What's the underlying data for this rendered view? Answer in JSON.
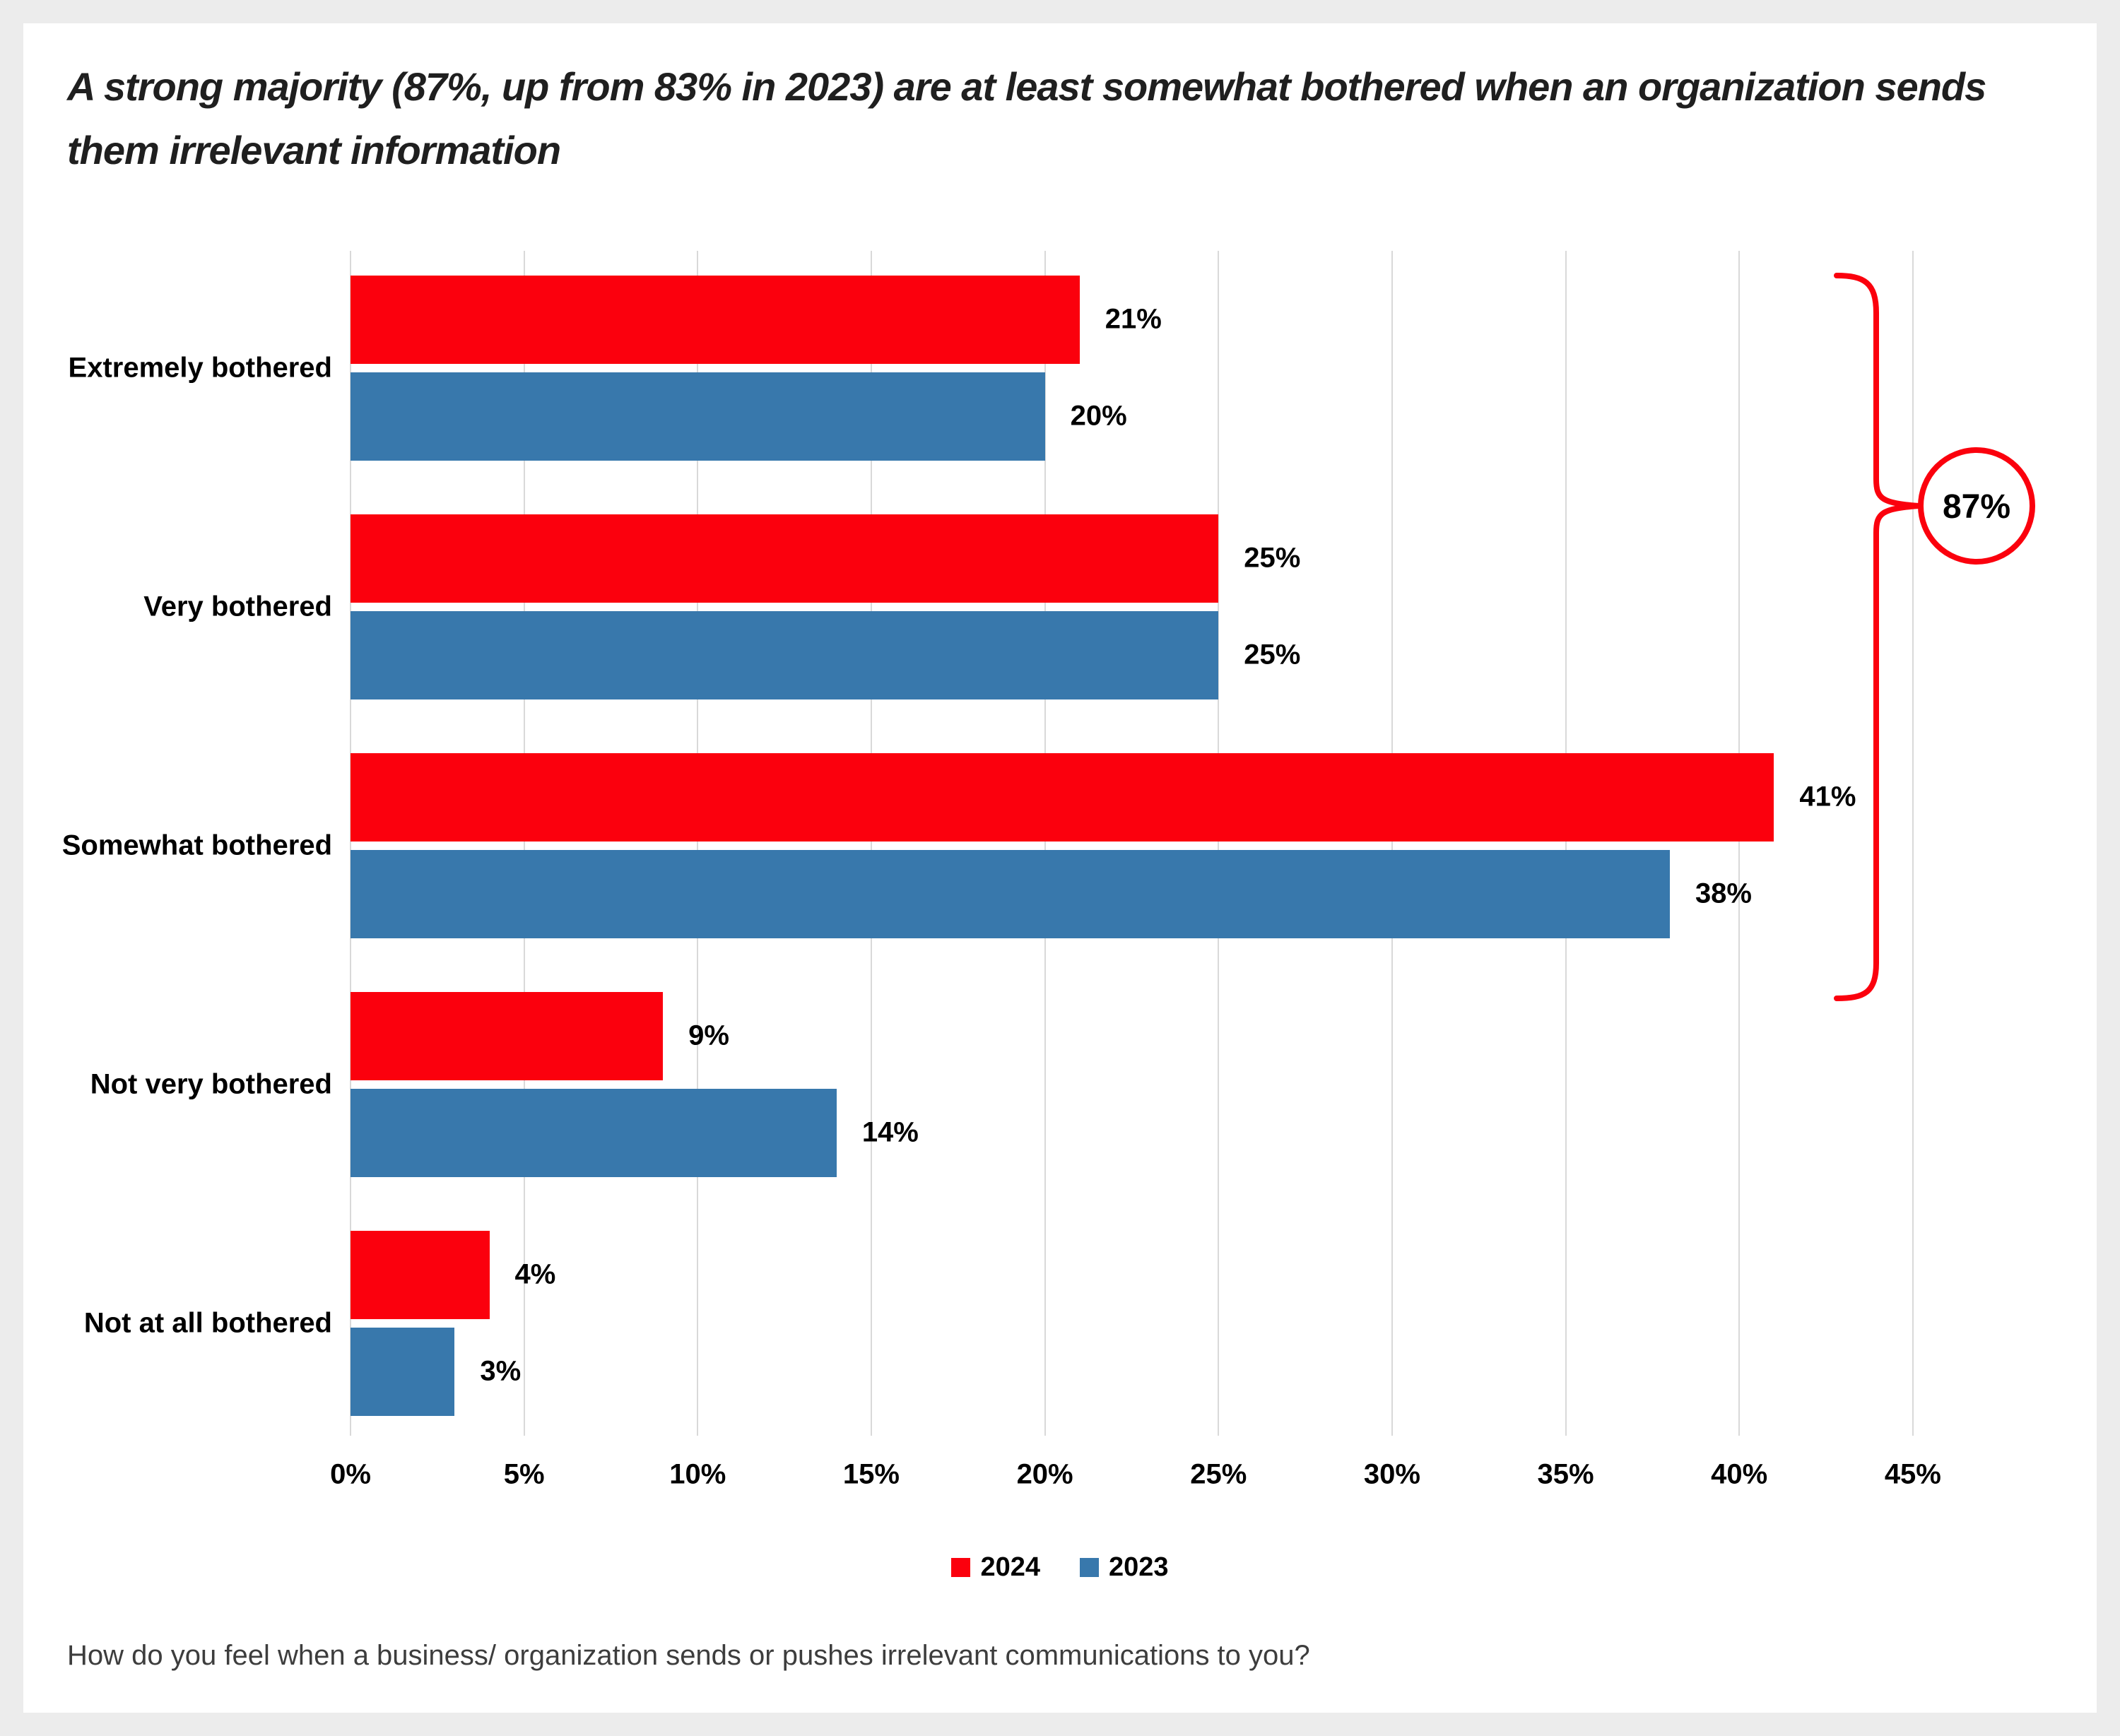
{
  "title": "A strong majority (87%, up from 83% in 2023) are at least somewhat bothered when an organization sends them irrelevant information",
  "question": "How do you feel when a business/ organization sends or pushes irrelevant communications to you?",
  "annotation": {
    "label": "87%"
  },
  "colors": {
    "background": "#ECECEC",
    "card": "#FFFFFF",
    "gridline": "#D9D9D9",
    "accent_red": "#FB000D",
    "accent_blue": "#3878AC",
    "title_text": "#1F1F1F",
    "question_text": "#3D3D3D"
  },
  "chart_data": {
    "type": "bar",
    "orientation": "horizontal",
    "title": "A strong majority (87%, up from 83% in 2023) are at least somewhat bothered when an organization sends them irrelevant information",
    "categories": [
      "Extremely bothered",
      "Very bothered",
      "Somewhat bothered",
      "Not very bothered",
      "Not at all bothered"
    ],
    "series": [
      {
        "name": "2024",
        "color": "#FB000D",
        "values": [
          21,
          25,
          41,
          9,
          4
        ]
      },
      {
        "name": "2023",
        "color": "#3878AC",
        "values": [
          20,
          25,
          38,
          14,
          3
        ]
      }
    ],
    "value_suffix": "%",
    "xlim": [
      0,
      45
    ],
    "tick_labels": [
      "0%",
      "5%",
      "10%",
      "15%",
      "20%",
      "25%",
      "30%",
      "35%",
      "40%",
      "45%"
    ],
    "grid": "vertical",
    "legend_position": "bottom",
    "annotation": {
      "label": "87%",
      "applies_to": [
        "Extremely bothered",
        "Very bothered",
        "Somewhat bothered"
      ]
    }
  }
}
